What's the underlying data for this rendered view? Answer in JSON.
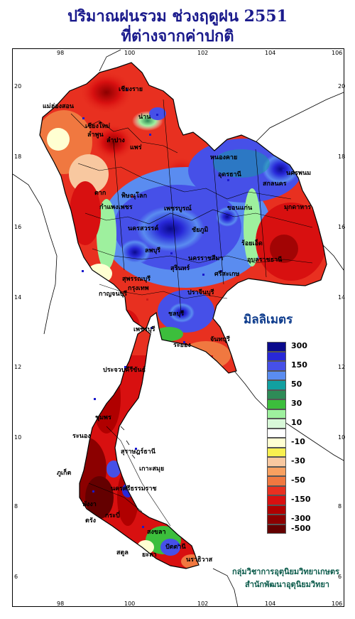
{
  "title": {
    "line1": "ปริมาณฝนรวม ช่วงฤดูฝน 2551",
    "line2": "ที่ต่างจากค่าปกติ"
  },
  "axes": {
    "lon_ticks": [
      "98",
      "100",
      "102",
      "104",
      "106"
    ],
    "lat_ticks": [
      "20",
      "18",
      "16",
      "14",
      "12",
      "10",
      "8",
      "6"
    ]
  },
  "legend": {
    "title": "มิลลิเมตร",
    "bins": [
      {
        "color": "#0a0a8c",
        "label": "300"
      },
      {
        "color": "#2828d8",
        "label": ""
      },
      {
        "color": "#4650e8",
        "label": "150"
      },
      {
        "color": "#5a8cf0",
        "label": ""
      },
      {
        "color": "#12a0a0",
        "label": "50"
      },
      {
        "color": "#2e8b57",
        "label": ""
      },
      {
        "color": "#3cbe3c",
        "label": "30"
      },
      {
        "color": "#9ef09e",
        "label": ""
      },
      {
        "color": "#d8f8d8",
        "label": "10"
      },
      {
        "color": "#ffffff",
        "label": ""
      },
      {
        "color": "#ffffd2",
        "label": "-10"
      },
      {
        "color": "#f8f050",
        "label": ""
      },
      {
        "color": "#f8c8a0",
        "label": "-30"
      },
      {
        "color": "#f8a060",
        "label": ""
      },
      {
        "color": "#f07840",
        "label": "-50"
      },
      {
        "color": "#e83020",
        "label": ""
      },
      {
        "color": "#d81010",
        "label": "-150"
      },
      {
        "color": "#b00000",
        "label": ""
      },
      {
        "color": "#8c0000",
        "label": "-300"
      },
      {
        "color": "#640000",
        "label": "-500"
      }
    ]
  },
  "places": [
    "เชียงราย",
    "เชียงใหม่",
    "ลำพูน",
    "น่าน",
    "แม่ฮ่องสอน",
    "แพร่",
    "ลำปาง",
    "หนองคาย",
    "อุดรธานี",
    "สกลนคร",
    "นครพนม",
    "มุกดาหาร",
    "ตาก",
    "พิษณุโลก",
    "เพชรบูรณ์",
    "ขอนแก่น",
    "กำแพงเพชร",
    "ชัยภูมิ",
    "นครสวรรค์",
    "ร้อยเอ็ด",
    "อุบลราชธานี",
    "นครราชสีมา",
    "สุรินทร์",
    "ศรีสะเกษ",
    "ลพบุรี",
    "สุพรรณบุรี",
    "กรุงเทพ",
    "ปราจีนบุรี",
    "กาญจนบุรี",
    "ชลบุรี",
    "ระยอง",
    "จันทบุรี",
    "เพชรบุรี",
    "ประจวบคีรีขันธ์",
    "ชุมพร",
    "ระนอง",
    "สุราษฎร์ธานี",
    "ภูเก็ต",
    "นครศรีธรรมราช",
    "ตรัง",
    "สงขลา",
    "ปัตตานี",
    "นราธิวาส",
    "สตูล",
    "พังงา",
    "กระบี่",
    "ยะลา",
    "เกาะสมุย"
  ],
  "credits": {
    "line1": "กลุ่มวิชาการอุตุนิยมวิทยาเกษตร",
    "line2": "สำนักพัฒนาอุตุนิยมวิทยา"
  }
}
